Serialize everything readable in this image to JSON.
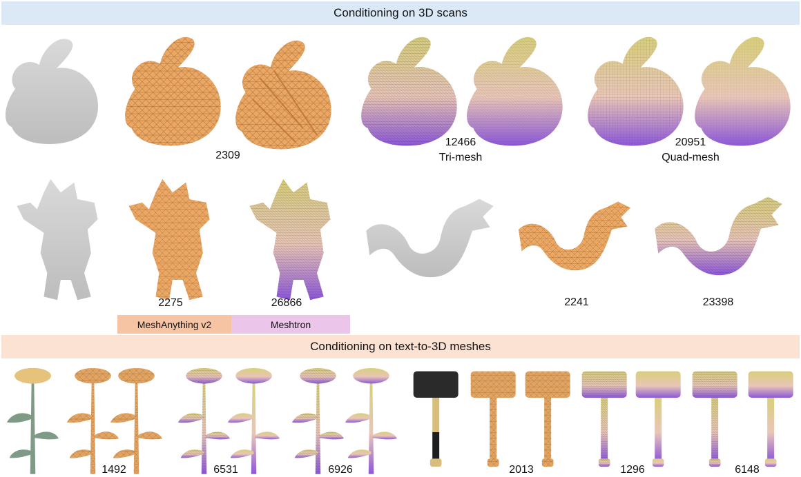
{
  "section_scans": {
    "title": "Conditioning on 3D scans"
  },
  "section_text3d": {
    "title": "Conditioning on text-to-3D meshes"
  },
  "legend": {
    "method_a": "MeshAnything v2",
    "method_b": "Meshtron"
  },
  "bunny": {
    "count_a": "2309",
    "count_tri": "12466",
    "label_tri": "Tri-mesh",
    "count_quad": "20951",
    "label_quad": "Quad-mesh"
  },
  "armadillo": {
    "count_a": "2275",
    "count_b": "26866"
  },
  "dragon": {
    "count_a": "2241",
    "count_b": "23398"
  },
  "flower": {
    "count_a": "1492",
    "count_b1": "6531",
    "count_b2": "6926"
  },
  "hammer": {
    "count_a": "2013",
    "count_b1": "1296",
    "count_b2": "6148"
  },
  "colors": {
    "input_gray": "#cfcfcf",
    "mesh_orange": "#e9a25f",
    "meshtron_top": "#e8dda8",
    "meshtron_bottom": "#9a62d6",
    "band_blue": "#dbe8f5",
    "band_peach": "#fbe2d3"
  }
}
